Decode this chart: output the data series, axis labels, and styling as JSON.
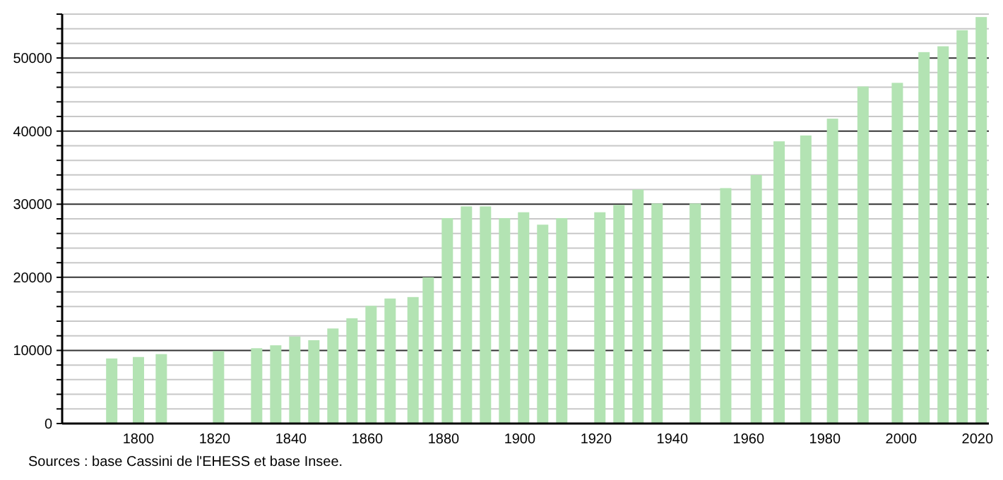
{
  "chart_data": {
    "type": "bar",
    "x": [
      1793,
      1800,
      1806,
      1821,
      1831,
      1836,
      1841,
      1846,
      1851,
      1856,
      1861,
      1866,
      1872,
      1876,
      1881,
      1886,
      1891,
      1896,
      1901,
      1906,
      1911,
      1921,
      1926,
      1931,
      1936,
      1946,
      1954,
      1962,
      1968,
      1975,
      1982,
      1990,
      1999,
      2006,
      2011,
      2016,
      2021
    ],
    "values": [
      8900,
      9100,
      9500,
      9900,
      10300,
      10700,
      11900,
      11400,
      13000,
      14400,
      16100,
      17100,
      17300,
      20000,
      28100,
      29700,
      29700,
      28100,
      28900,
      27200,
      28100,
      28900,
      29900,
      32000,
      30100,
      30100,
      32200,
      34000,
      38600,
      39400,
      41700,
      46100,
      46600,
      50800,
      51600,
      53800,
      55600
    ],
    "color": "#b3e3b3",
    "xlim": [
      1780,
      2023
    ],
    "xticks": [
      1800,
      1820,
      1840,
      1860,
      1880,
      1900,
      1920,
      1940,
      1960,
      1980,
      2000,
      2020
    ],
    "ylim": [
      0,
      56000
    ],
    "yticks": [
      0,
      {
        "value": 2000,
        "label": null
      },
      {
        "value": 4000,
        "label": null
      },
      {
        "value": 6000,
        "label": null
      },
      {
        "value": 8000,
        "label": null
      },
      10000,
      {
        "value": 12000,
        "label": null
      },
      {
        "value": 14000,
        "label": null
      },
      {
        "value": 16000,
        "label": null
      },
      {
        "value": 18000,
        "label": null
      },
      20000,
      {
        "value": 22000,
        "label": null
      },
      {
        "value": 24000,
        "label": null
      },
      {
        "value": 26000,
        "label": null
      },
      {
        "value": 28000,
        "label": null
      },
      30000,
      {
        "value": 32000,
        "label": null
      },
      {
        "value": 34000,
        "label": null
      },
      {
        "value": 36000,
        "label": null
      },
      {
        "value": 38000,
        "label": null
      },
      40000,
      {
        "value": 42000,
        "label": null
      },
      {
        "value": 44000,
        "label": null
      },
      {
        "value": 46000,
        "label": null
      },
      {
        "value": 48000,
        "label": null
      },
      50000,
      {
        "value": 52000,
        "label": null
      },
      {
        "value": 54000,
        "label": null
      },
      {
        "value": 56000,
        "label": null
      }
    ],
    "grid": true,
    "annotations": [
      "Sources : base Cassini de l'EHESS et base Insee."
    ]
  }
}
